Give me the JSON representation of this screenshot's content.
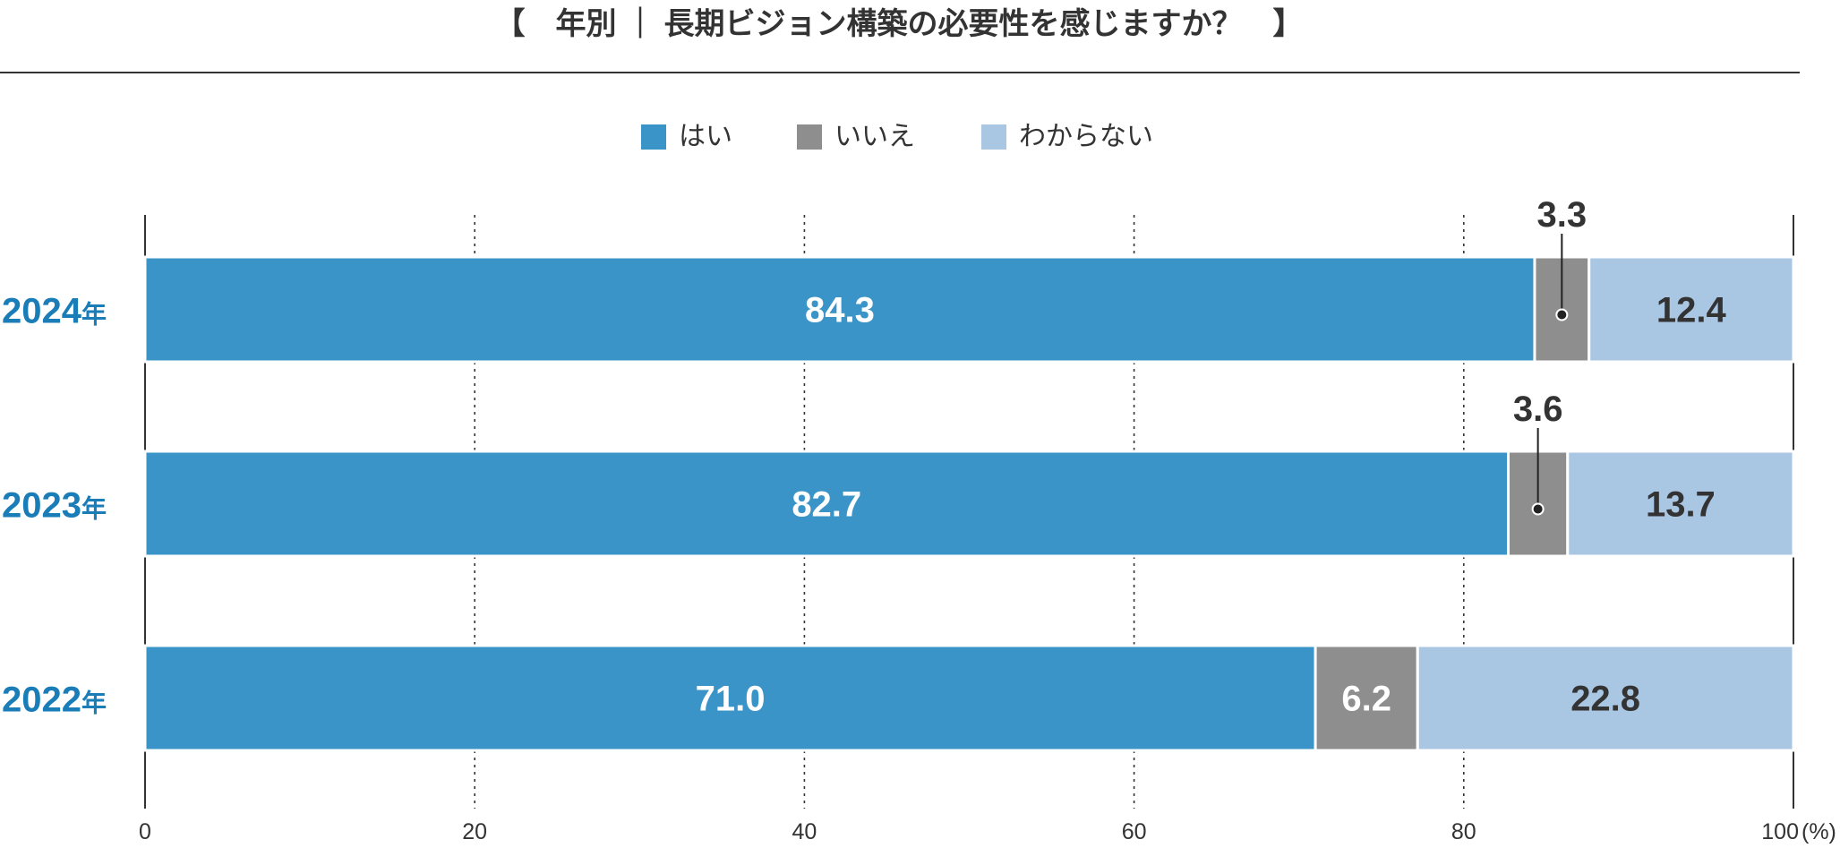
{
  "chart_data": {
    "type": "bar",
    "orientation": "horizontal",
    "stacked": true,
    "title": "【　年別 ｜ 長期ビジョン構築の必要性を感じますか？　】",
    "categories": [
      "2024年",
      "2023年",
      "2022年"
    ],
    "series": [
      {
        "name": "はい",
        "values": [
          84.3,
          82.7,
          71.0
        ],
        "labels": [
          "84.3",
          "82.7",
          "71.0"
        ]
      },
      {
        "name": "いいえ",
        "values": [
          3.3,
          3.6,
          6.2
        ],
        "labels": [
          "3.3",
          "3.6",
          "6.2"
        ]
      },
      {
        "name": "わからない",
        "values": [
          12.4,
          13.7,
          22.8
        ],
        "labels": [
          "12.4",
          "13.7",
          "22.8"
        ]
      }
    ],
    "x_ticks": [
      "0",
      "20",
      "40",
      "60",
      "80",
      "100"
    ],
    "x_unit": "(%)",
    "xlim": [
      0,
      100
    ],
    "grid": true,
    "legend_position": "top-center"
  },
  "colors": {
    "はい": "#3a94c7",
    "いいえ": "#8e8e8e",
    "わからない": "#a9c6e3",
    "year_label": "#1a7db8",
    "text": "#333333"
  }
}
